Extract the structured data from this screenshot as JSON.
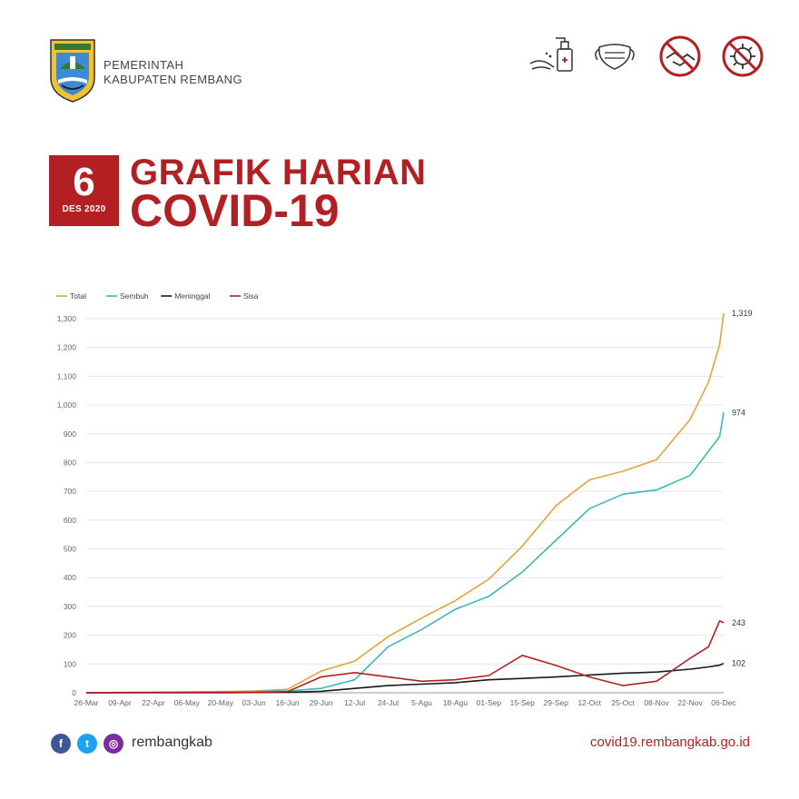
{
  "header": {
    "org_line1": "PEMERINTAH",
    "org_line2": "KABUPATEN REMBANG",
    "icons": [
      "hand-sanitizer-icon",
      "face-mask-icon",
      "no-handshake-icon",
      "no-virus-icon"
    ]
  },
  "date": {
    "day": "6",
    "month": "DES 2020"
  },
  "title": {
    "line1": "GRAFIK HARIAN",
    "line2": "COVID-19"
  },
  "footer": {
    "handle": "rembangkab",
    "url": "covid19.rembangkab.go.id"
  },
  "colors": {
    "brand": "#b32024",
    "total": "#e7a23b",
    "sembuh": "#3bb9b7",
    "meninggal": "#1a1a1a",
    "sisa": "#b32024"
  },
  "chart_data": {
    "type": "line",
    "ylim": [
      0,
      1300
    ],
    "y_ticks": [
      0,
      100,
      200,
      300,
      400,
      500,
      600,
      700,
      800,
      900,
      1000,
      1100,
      1200,
      1300
    ],
    "y_tick_labels": [
      "0",
      "100",
      "200",
      "300",
      "400",
      "500",
      "600",
      "700",
      "800",
      "900",
      "1,000",
      "1,100",
      "1,200",
      "1,300"
    ],
    "x_tick_labels": [
      "26-Mar",
      "09-Apr",
      "22-Apr",
      "06-May",
      "20-May",
      "03-Jun",
      "16-Jun",
      "29-Jun",
      "12-Jul",
      "24-Jul",
      "5-Agu",
      "18-Agu",
      "01-Sep",
      "15-Sep",
      "29-Sep",
      "12-Oct",
      "25-Oct",
      "08-Nov",
      "22-Nov",
      "06-Dec"
    ],
    "x": [
      "26-Mar",
      "09-Apr",
      "22-Apr",
      "06-May",
      "20-May",
      "03-Jun",
      "16-Jun",
      "29-Jun",
      "12-Jul",
      "24-Jul",
      "5-Agu",
      "18-Agu",
      "01-Sep",
      "15-Sep",
      "29-Sep",
      "12-Oct",
      "25-Oct",
      "08-Nov",
      "22-Nov",
      "30-Nov",
      "04-Dec",
      "06-Dec"
    ],
    "grid": true,
    "legend_position": "top-left",
    "series": [
      {
        "name": "Total",
        "values": [
          0,
          1,
          2,
          3,
          4,
          6,
          12,
          75,
          110,
          195,
          260,
          320,
          395,
          510,
          650,
          740,
          770,
          810,
          950,
          1080,
          1210,
          1319
        ],
        "end_label": "1,319"
      },
      {
        "name": "Sembuh",
        "values": [
          0,
          0,
          1,
          2,
          3,
          4,
          6,
          15,
          45,
          160,
          220,
          290,
          335,
          420,
          530,
          640,
          690,
          705,
          755,
          840,
          890,
          974
        ],
        "end_label": "974"
      },
      {
        "name": "Meninggal",
        "values": [
          0,
          0,
          0,
          0,
          0,
          1,
          2,
          5,
          15,
          25,
          30,
          35,
          45,
          50,
          55,
          62,
          68,
          72,
          82,
          90,
          96,
          102
        ],
        "end_label": "102"
      },
      {
        "name": "Sisa",
        "values": [
          0,
          1,
          1,
          1,
          1,
          1,
          4,
          55,
          70,
          55,
          40,
          45,
          60,
          130,
          95,
          55,
          25,
          40,
          120,
          160,
          250,
          243
        ],
        "end_label": "243"
      }
    ]
  }
}
